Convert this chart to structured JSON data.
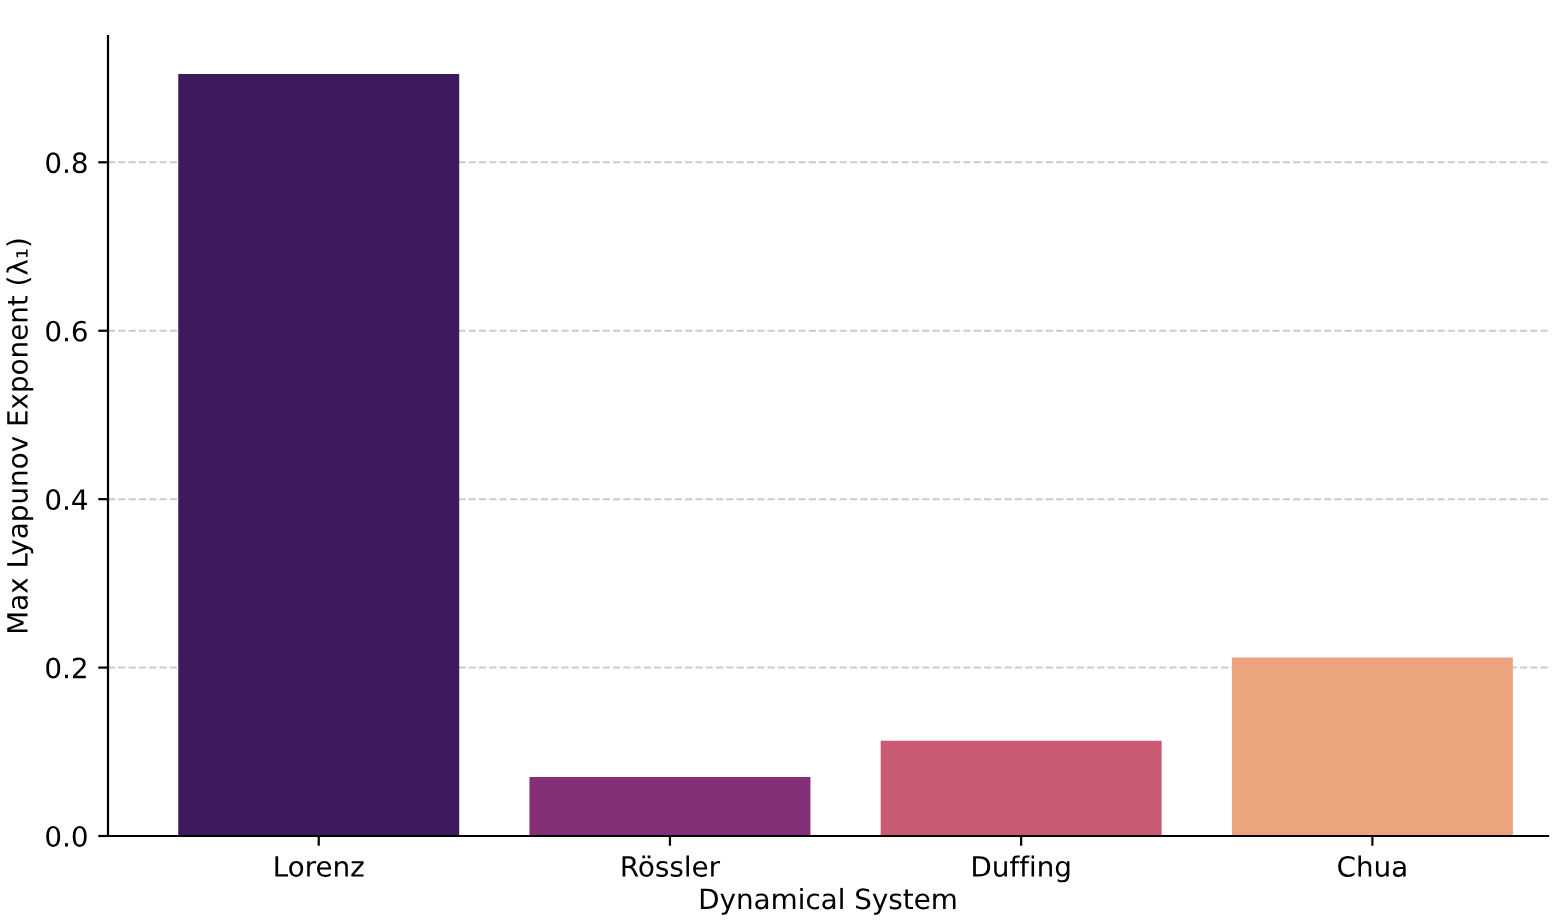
{
  "chart_data": {
    "type": "bar",
    "xlabel": "Dynamical System",
    "ylabel": "Max Lyapunov Exponent (λ₁)",
    "categories": [
      "Lorenz",
      "Rössler",
      "Duffing",
      "Chua"
    ],
    "values": [
      0.905,
      0.07,
      0.113,
      0.212
    ],
    "colors": [
      "#3d1a5e",
      "#842f77",
      "#c95a72",
      "#eba47d"
    ],
    "ylim": [
      0,
      0.95
    ],
    "yticks": [
      {
        "value": 0,
        "label": "0.0"
      },
      0.2,
      0.4,
      0.6,
      0.8
    ],
    "grid": "y"
  }
}
